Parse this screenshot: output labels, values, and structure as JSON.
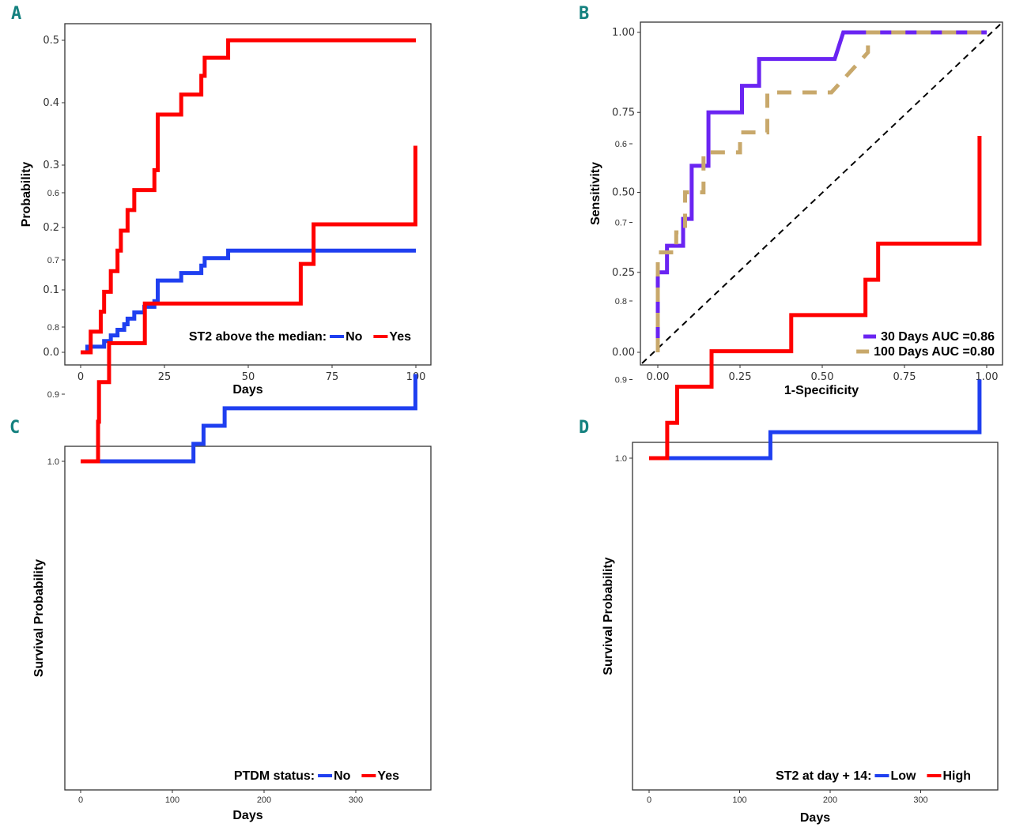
{
  "colors": {
    "blue": "#1f3ff0",
    "red": "#ff0000",
    "purple": "#6a24f2",
    "tan": "#c8a86b",
    "panel_letter": "#14817f"
  },
  "chart_data": [
    {
      "panel": "A",
      "type": "line",
      "step": true,
      "title": "",
      "xlabel": "Days",
      "ylabel": "Probability",
      "xlim": [
        0,
        100
      ],
      "ylim": [
        0,
        0.5
      ],
      "xticks": [
        "0",
        "25",
        "50",
        "75",
        "100"
      ],
      "xtick_values": [
        0,
        25,
        50,
        75,
        100
      ],
      "yticks": [
        "0.0",
        "0.1",
        "0.2",
        "0.3",
        "0.4",
        "0.5"
      ],
      "ytick_values": [
        0,
        0.1,
        0.2,
        0.3,
        0.4,
        0.5
      ],
      "legend": {
        "title": "ST2 above the median:",
        "placement": "bottom-right"
      },
      "series": [
        {
          "name": "No",
          "color_key": "blue",
          "x": [
            2,
            7,
            9,
            11,
            13,
            14,
            16,
            19,
            22,
            23,
            30,
            36,
            37,
            44,
            100
          ],
          "y": [
            0.009,
            0.018,
            0.027,
            0.036,
            0.045,
            0.054,
            0.064,
            0.073,
            0.082,
            0.115,
            0.127,
            0.139,
            0.151,
            0.163,
            0.163
          ]
        },
        {
          "name": "Yes",
          "color_key": "red",
          "x": [
            0,
            3,
            6,
            7,
            9,
            11,
            12,
            14,
            16,
            22,
            23,
            30,
            36,
            37,
            44,
            100
          ],
          "y": [
            0,
            0.033,
            0.065,
            0.097,
            0.13,
            0.163,
            0.195,
            0.228,
            0.26,
            0.292,
            0.381,
            0.413,
            0.443,
            0.472,
            0.5,
            0.5
          ]
        }
      ]
    },
    {
      "panel": "B",
      "type": "line",
      "title": "",
      "xlabel": "1-Specificity",
      "ylabel": "Sensitivity",
      "xlim": [
        0,
        1
      ],
      "ylim": [
        0,
        1
      ],
      "xticks": [
        "0.00",
        "0.25",
        "0.50",
        "0.75",
        "1.00"
      ],
      "xtick_values": [
        0,
        0.25,
        0.5,
        0.75,
        1
      ],
      "yticks": [
        "0.00",
        "0.25",
        "0.50",
        "0.75",
        "1.00"
      ],
      "ytick_values": [
        0,
        0.25,
        0.5,
        0.75,
        1
      ],
      "legend": {
        "placement": "bottom-right",
        "entries": [
          "30 Days AUC =0.86",
          "100 Days AUC =0.80"
        ]
      },
      "reference_line": {
        "from": [
          0,
          0
        ],
        "to": [
          1,
          1
        ],
        "style": "dashed"
      },
      "series": [
        {
          "name": "30 Days AUC =0.86",
          "color_key": "purple",
          "style": "solid",
          "x": [
            0,
            0,
            0.028,
            0.028,
            0.077,
            0.077,
            0.103,
            0.103,
            0.154,
            0.154,
            0.256,
            0.256,
            0.308,
            0.308,
            0.538,
            0.564,
            1.0
          ],
          "y": [
            0,
            0.25,
            0.25,
            0.333,
            0.333,
            0.417,
            0.417,
            0.583,
            0.583,
            0.75,
            0.75,
            0.833,
            0.833,
            0.917,
            0.917,
            1.0,
            1.0
          ]
        },
        {
          "name": "100 Days AUC =0.80",
          "color_key": "tan",
          "style": "dashed",
          "x": [
            0,
            0,
            0.056,
            0.056,
            0.083,
            0.083,
            0.139,
            0.139,
            0.25,
            0.25,
            0.333,
            0.333,
            0.528,
            0.639,
            0.639,
            1.0
          ],
          "y": [
            0,
            0.3125,
            0.3125,
            0.375,
            0.375,
            0.5,
            0.5,
            0.625,
            0.625,
            0.6875,
            0.6875,
            0.8125,
            0.8125,
            0.9375,
            1.0,
            1.0
          ]
        }
      ]
    },
    {
      "panel": "C",
      "type": "line",
      "step": true,
      "title": "",
      "xlabel": "Days",
      "ylabel": "Survival Probability",
      "xlim": [
        0,
        365
      ],
      "ylim": [
        0.53,
        1.0
      ],
      "xticks": [
        "0",
        "100",
        "200",
        "300"
      ],
      "xtick_values": [
        0,
        100,
        200,
        300
      ],
      "yticks": [
        "0.6",
        "0.7",
        "0.8",
        "0.9",
        "1.0"
      ],
      "ytick_values": [
        0.6,
        0.7,
        0.8,
        0.9,
        1.0
      ],
      "legend": {
        "title": "PTDM status:",
        "placement": "bottom-right"
      },
      "series": [
        {
          "name": "No",
          "color_key": "blue",
          "x": [
            0,
            123,
            134,
            157,
            365,
            365
          ],
          "y": [
            1.0,
            0.974,
            0.947,
            0.921,
            0.921,
            0.87
          ]
        },
        {
          "name": "Yes",
          "color_key": "red",
          "x": [
            0,
            19,
            20,
            31,
            70,
            240,
            254,
            365,
            365
          ],
          "y": [
            1.0,
            0.941,
            0.882,
            0.824,
            0.765,
            0.706,
            0.647,
            0.647,
            0.53
          ]
        }
      ]
    },
    {
      "panel": "D",
      "type": "line",
      "step": true,
      "title": "",
      "xlabel": "Days",
      "ylabel": "Survival Probability",
      "xlim": [
        0,
        365
      ],
      "ylim": [
        0.59,
        1.0
      ],
      "xticks": [
        "0",
        "100",
        "200",
        "300"
      ],
      "xtick_values": [
        0,
        100,
        200,
        300
      ],
      "yticks": [
        "0.6",
        "0.7",
        "0.8",
        "0.9",
        "1.0"
      ],
      "ytick_values": [
        0.6,
        0.7,
        0.8,
        0.9,
        1.0
      ],
      "legend": {
        "title": "ST2 at day + 14:",
        "placement": "bottom-right"
      },
      "series": [
        {
          "name": "Low",
          "color_key": "blue",
          "x": [
            0,
            134,
            365,
            365
          ],
          "y": [
            1.0,
            0.967,
            0.967,
            0.9
          ]
        },
        {
          "name": "High",
          "color_key": "red",
          "x": [
            19,
            20,
            31,
            69,
            157,
            239,
            253,
            365,
            365
          ],
          "y": [
            1.0,
            0.955,
            0.909,
            0.864,
            0.818,
            0.773,
            0.727,
            0.682,
            0.59
          ],
          "start": [
            0,
            1.0
          ]
        }
      ]
    }
  ],
  "labels": {
    "A": "A",
    "B": "B",
    "C": "C",
    "D": "D"
  }
}
